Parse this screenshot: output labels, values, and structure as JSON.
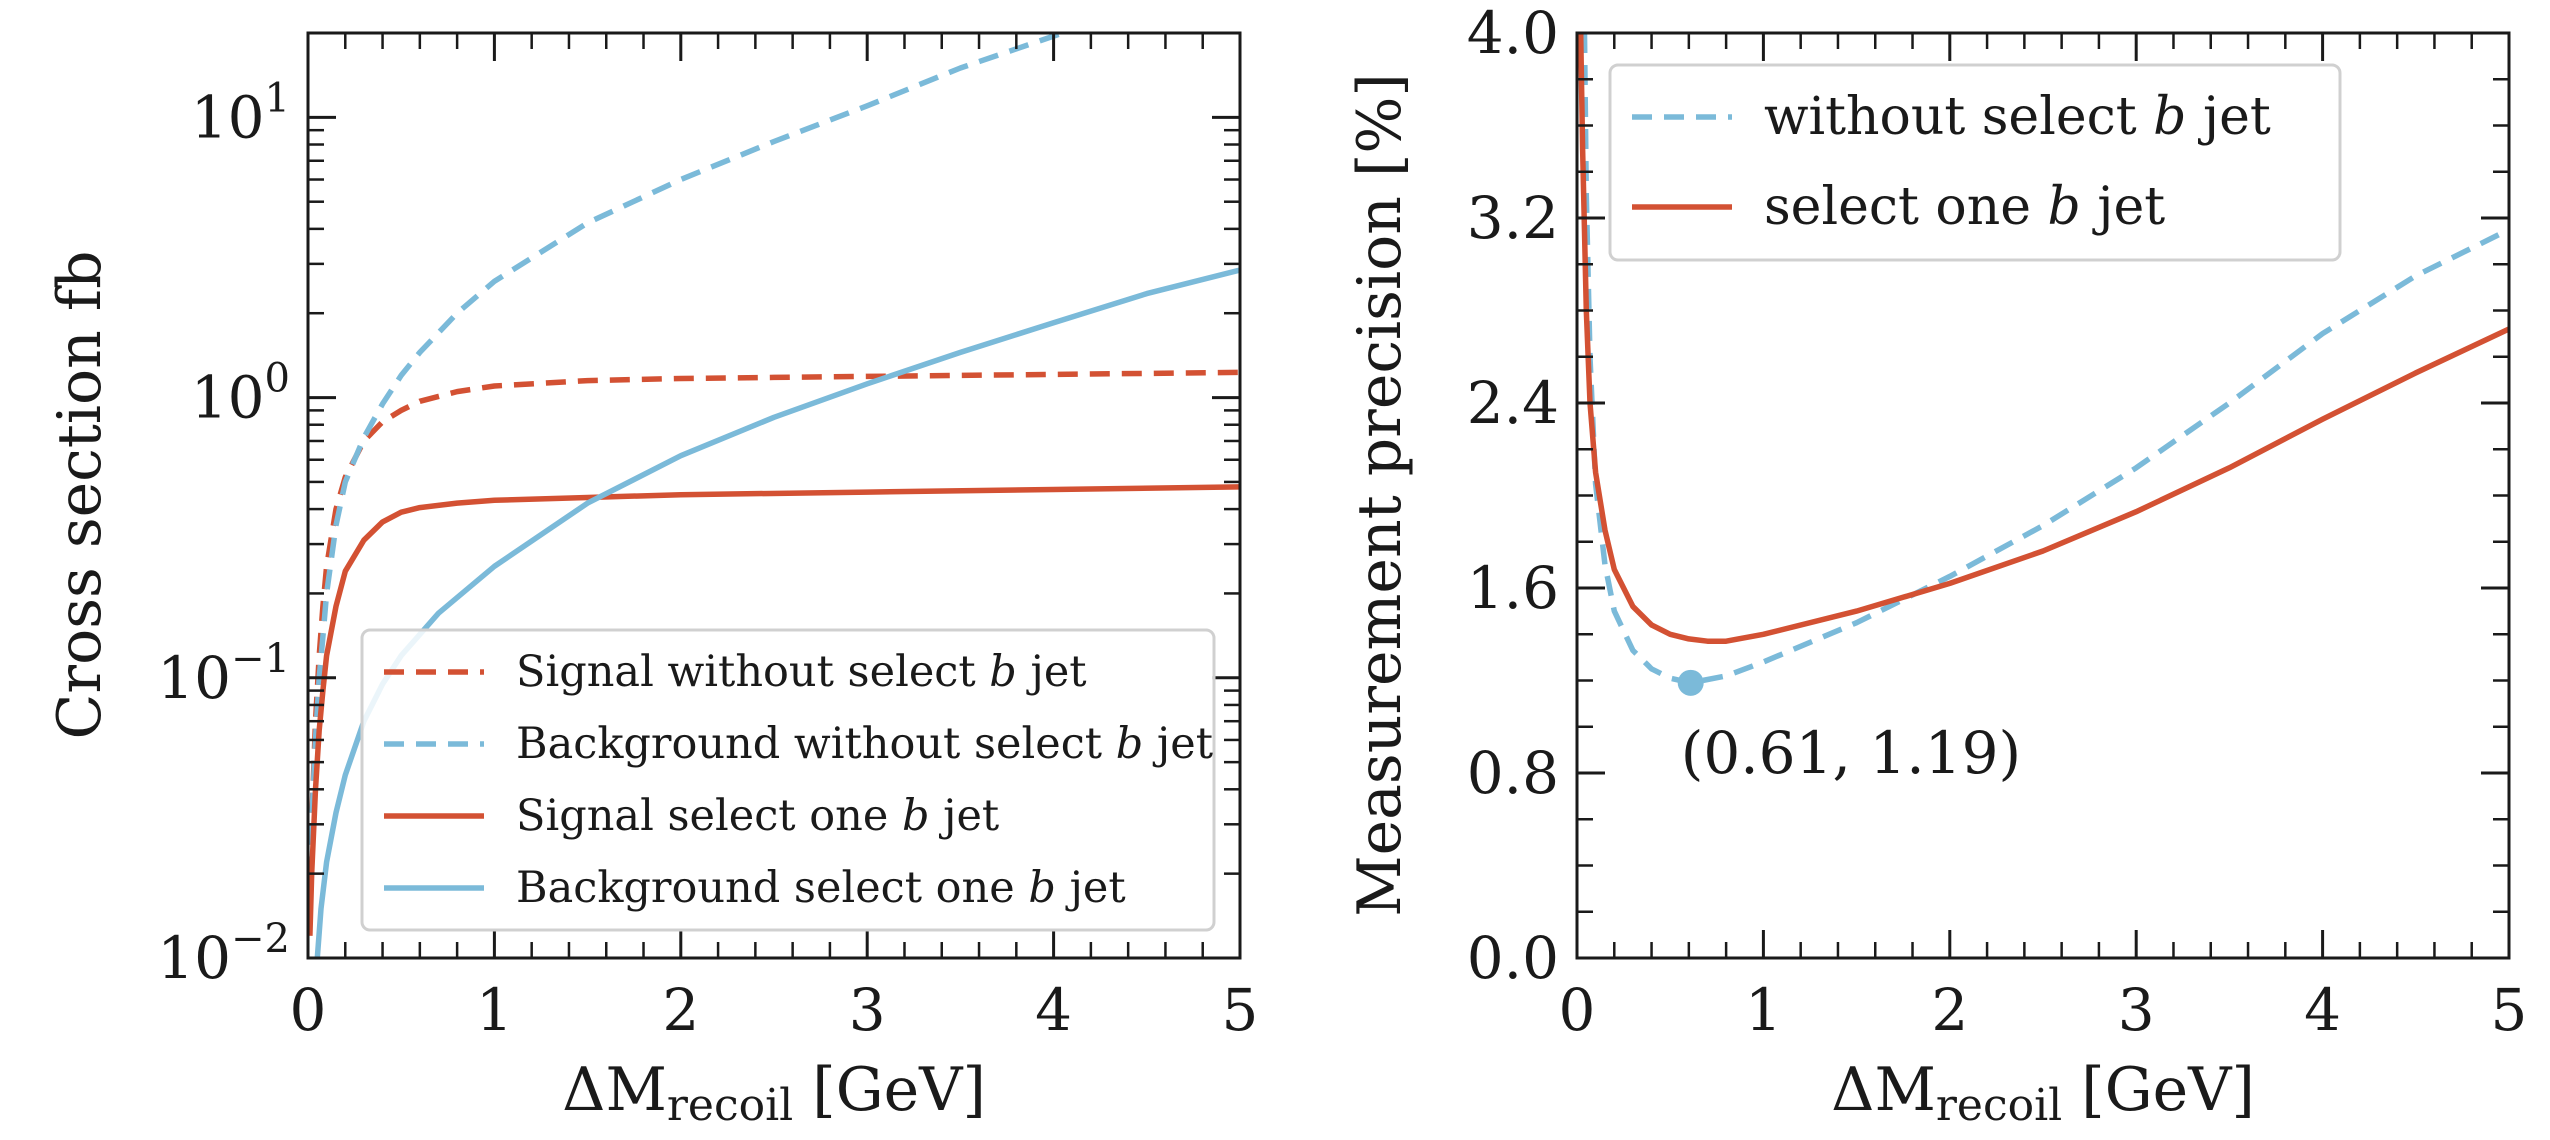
{
  "colors": {
    "red": "#d35133",
    "blue": "#7bbad9",
    "axis": "#1a1a1a"
  },
  "chart_data": [
    {
      "type": "line",
      "xlabel": "ΔM",
      "xlabel_sub": "recoil",
      "xlabel_unit": " [GeV]",
      "ylabel": "Cross section fb",
      "yscale": "log",
      "xlim": [
        0,
        5
      ],
      "ylim": [
        0.01,
        20
      ],
      "xticks": [
        0,
        1,
        2,
        3,
        4,
        5
      ],
      "xtick_labels": [
        "0",
        "1",
        "2",
        "3",
        "4",
        "5"
      ],
      "yticks": [
        {
          "value": 10,
          "base": "10",
          "exp": "1"
        },
        {
          "value": 1,
          "base": "10",
          "exp": "0"
        },
        {
          "value": 0.1,
          "base": "10",
          "exp": "−1"
        },
        {
          "value": 0.01,
          "base": "10",
          "exp": "−2"
        }
      ],
      "legend_position": "lower-right",
      "series": [
        {
          "name": "Signal without select b jet",
          "label_pre": "Signal without select ",
          "label_it": "b",
          "label_post": " jet",
          "color": "#d35133",
          "style": "dashed",
          "x": [
            0.01,
            0.02,
            0.04,
            0.06,
            0.08,
            0.1,
            0.15,
            0.2,
            0.3,
            0.4,
            0.5,
            0.6,
            0.8,
            1.0,
            1.5,
            2.0,
            2.5,
            3.0,
            3.5,
            4.0,
            4.5,
            5.0
          ],
          "y": [
            0.015,
            0.03,
            0.07,
            0.12,
            0.18,
            0.25,
            0.4,
            0.52,
            0.7,
            0.82,
            0.9,
            0.97,
            1.05,
            1.1,
            1.15,
            1.17,
            1.18,
            1.19,
            1.2,
            1.21,
            1.22,
            1.23
          ]
        },
        {
          "name": "Background without select b jet",
          "label_pre": "Background without select ",
          "label_it": "b",
          "label_post": " jet",
          "color": "#7bbad9",
          "style": "dashed",
          "x": [
            0.01,
            0.02,
            0.04,
            0.06,
            0.08,
            0.1,
            0.15,
            0.2,
            0.3,
            0.4,
            0.5,
            0.6,
            0.8,
            1.0,
            1.5,
            2.0,
            2.5,
            3.0,
            3.5,
            4.0,
            4.05
          ],
          "y": [
            0.015,
            0.03,
            0.06,
            0.1,
            0.14,
            0.2,
            0.35,
            0.5,
            0.72,
            0.95,
            1.2,
            1.45,
            2.0,
            2.6,
            4.2,
            6.0,
            8.2,
            11.0,
            15.0,
            19.5,
            20.0
          ]
        },
        {
          "name": "Signal select one b jet",
          "label_pre": "Signal select one ",
          "label_it": "b",
          "label_post": " jet",
          "color": "#d35133",
          "style": "solid",
          "x": [
            0.01,
            0.02,
            0.04,
            0.06,
            0.08,
            0.1,
            0.15,
            0.2,
            0.3,
            0.4,
            0.5,
            0.6,
            0.8,
            1.0,
            1.5,
            2.0,
            3.0,
            4.0,
            5.0
          ],
          "y": [
            0.012,
            0.02,
            0.04,
            0.065,
            0.09,
            0.12,
            0.18,
            0.24,
            0.31,
            0.36,
            0.39,
            0.405,
            0.42,
            0.43,
            0.44,
            0.45,
            0.46,
            0.47,
            0.48
          ]
        },
        {
          "name": "Background select one b jet",
          "label_pre": "Background select one ",
          "label_it": "b",
          "label_post": " jet",
          "color": "#7bbad9",
          "style": "solid",
          "x": [
            0.05,
            0.07,
            0.1,
            0.15,
            0.2,
            0.3,
            0.4,
            0.5,
            0.7,
            1.0,
            1.5,
            2.0,
            2.5,
            3.0,
            3.5,
            4.0,
            4.5,
            5.0
          ],
          "y": [
            0.01,
            0.015,
            0.022,
            0.033,
            0.045,
            0.07,
            0.095,
            0.12,
            0.17,
            0.25,
            0.42,
            0.62,
            0.85,
            1.12,
            1.45,
            1.85,
            2.35,
            2.85
          ]
        }
      ]
    },
    {
      "type": "line",
      "xlabel": "ΔM",
      "xlabel_sub": "recoil",
      "xlabel_unit": " [GeV]",
      "ylabel": "Measurement precision [%]",
      "xlim": [
        0,
        5
      ],
      "ylim": [
        0,
        4.0
      ],
      "xticks": [
        0,
        1,
        2,
        3,
        4,
        5
      ],
      "xtick_labels": [
        "0",
        "1",
        "2",
        "3",
        "4",
        "5"
      ],
      "yticks": [
        0.0,
        0.8,
        1.6,
        2.4,
        3.2,
        4.0
      ],
      "ytick_labels": [
        "0.0",
        "0.8",
        "1.6",
        "2.4",
        "3.2",
        "4.0"
      ],
      "legend_position": "upper-left",
      "series": [
        {
          "name": "without select b jet",
          "label_pre": "without select ",
          "label_it": "b",
          "label_post": " jet",
          "color": "#7bbad9",
          "style": "dashed",
          "x": [
            0.04,
            0.05,
            0.07,
            0.1,
            0.15,
            0.2,
            0.3,
            0.4,
            0.5,
            0.61,
            0.8,
            1.0,
            1.5,
            2.0,
            2.5,
            3.0,
            3.5,
            4.0,
            4.5,
            5.0
          ],
          "y": [
            4.0,
            3.3,
            2.6,
            2.05,
            1.7,
            1.5,
            1.33,
            1.25,
            1.21,
            1.19,
            1.22,
            1.28,
            1.45,
            1.65,
            1.87,
            2.12,
            2.4,
            2.7,
            2.95,
            3.15
          ]
        },
        {
          "name": "select one b jet",
          "label_pre": "select one ",
          "label_it": "b",
          "label_post": " jet",
          "color": "#d35133",
          "style": "solid",
          "x": [
            0.02,
            0.03,
            0.05,
            0.07,
            0.1,
            0.15,
            0.2,
            0.3,
            0.4,
            0.5,
            0.6,
            0.7,
            0.8,
            1.0,
            1.5,
            2.0,
            2.5,
            3.0,
            3.5,
            4.0,
            4.5,
            5.0
          ],
          "y": [
            4.0,
            3.5,
            2.8,
            2.4,
            2.1,
            1.85,
            1.68,
            1.52,
            1.44,
            1.4,
            1.38,
            1.37,
            1.37,
            1.4,
            1.5,
            1.62,
            1.76,
            1.93,
            2.12,
            2.33,
            2.53,
            2.72
          ]
        }
      ],
      "annotation": {
        "x": 0.61,
        "y": 1.19,
        "text": "(0.61, 1.19)",
        "color": "#7bbad9"
      }
    }
  ]
}
